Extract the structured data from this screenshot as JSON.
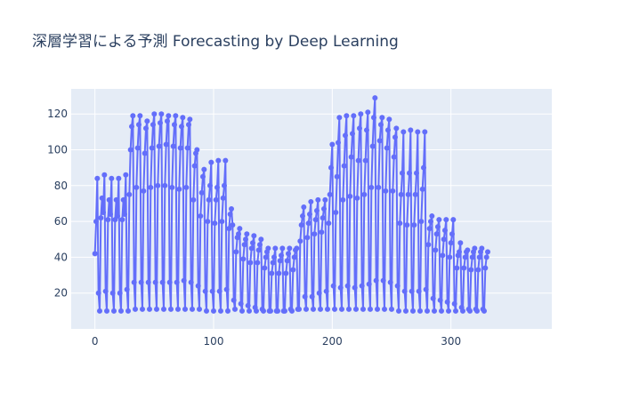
{
  "chart_data": {
    "type": "line",
    "title": "深層学習による予測 Forecasting by Deep Learning",
    "xlabel": "",
    "ylabel": "",
    "xlim": [
      -20,
      385
    ],
    "ylim": [
      0,
      134
    ],
    "xticks": [
      0,
      100,
      200,
      300
    ],
    "yticks": [
      20,
      40,
      60,
      80,
      100,
      120
    ],
    "grid": true,
    "legend": "none",
    "line_color": "#636efa",
    "plot_bg": "#e5ecf6",
    "x_start": 0,
    "x_step": 1,
    "series": [
      {
        "name": "",
        "values": [
          42,
          60,
          84,
          20,
          10,
          62,
          73,
          65,
          86,
          21,
          10,
          61,
          72,
          64,
          84,
          20,
          10,
          61,
          72,
          63,
          84,
          20,
          10,
          61,
          72,
          64,
          86,
          22,
          10,
          75,
          100,
          113,
          119,
          26,
          11,
          79,
          101,
          114,
          119,
          26,
          11,
          77,
          98,
          112,
          116,
          26,
          11,
          79,
          101,
          114,
          120,
          26,
          11,
          80,
          102,
          115,
          120,
          26,
          11,
          80,
          103,
          116,
          119,
          26,
          11,
          79,
          102,
          114,
          119,
          26,
          11,
          78,
          101,
          113,
          118,
          27,
          11,
          79,
          101,
          114,
          117,
          26,
          11,
          72,
          91,
          98,
          100,
          24,
          11,
          63,
          76,
          85,
          89,
          21,
          10,
          60,
          72,
          80,
          93,
          21,
          10,
          59,
          72,
          79,
          94,
          21,
          10,
          60,
          73,
          80,
          94,
          22,
          10,
          56,
          64,
          67,
          58,
          16,
          11,
          43,
          51,
          53,
          56,
          14,
          10,
          39,
          47,
          50,
          53,
          13,
          10,
          37,
          45,
          48,
          52,
          12,
          10,
          37,
          44,
          47,
          50,
          11,
          10,
          34,
          40,
          43,
          45,
          10,
          10,
          31,
          37,
          40,
          45,
          10,
          10,
          31,
          38,
          41,
          45,
          10,
          10,
          31,
          38,
          42,
          45,
          11,
          10,
          33,
          40,
          44,
          45,
          11,
          11,
          49,
          58,
          63,
          68,
          18,
          11,
          51,
          59,
          64,
          71,
          18,
          11,
          53,
          61,
          66,
          72,
          20,
          11,
          54,
          62,
          67,
          72,
          21,
          11,
          59,
          75,
          90,
          103,
          24,
          11,
          65,
          85,
          104,
          118,
          23,
          11,
          72,
          91,
          108,
          119,
          24,
          11,
          74,
          96,
          109,
          119,
          23,
          11,
          73,
          94,
          112,
          120,
          24,
          11,
          75,
          94,
          111,
          121,
          25,
          11,
          79,
          102,
          118,
          129,
          27,
          11,
          79,
          105,
          114,
          118,
          27,
          11,
          77,
          101,
          111,
          117,
          26,
          11,
          77,
          96,
          107,
          112,
          24,
          10,
          59,
          75,
          87,
          110,
          21,
          10,
          58,
          75,
          87,
          111,
          21,
          10,
          58,
          75,
          87,
          110,
          21,
          10,
          60,
          78,
          90,
          110,
          22,
          10,
          47,
          56,
          60,
          63,
          17,
          10,
          44,
          53,
          57,
          61,
          16,
          10,
          41,
          50,
          55,
          61,
          15,
          10,
          40,
          48,
          53,
          61,
          14,
          10,
          34,
          41,
          43,
          48,
          12,
          10,
          34,
          40,
          43,
          44,
          11,
          10,
          33,
          40,
          43,
          45,
          11,
          10,
          33,
          40,
          43,
          45,
          11,
          10,
          34,
          40,
          43
        ]
      }
    ]
  }
}
